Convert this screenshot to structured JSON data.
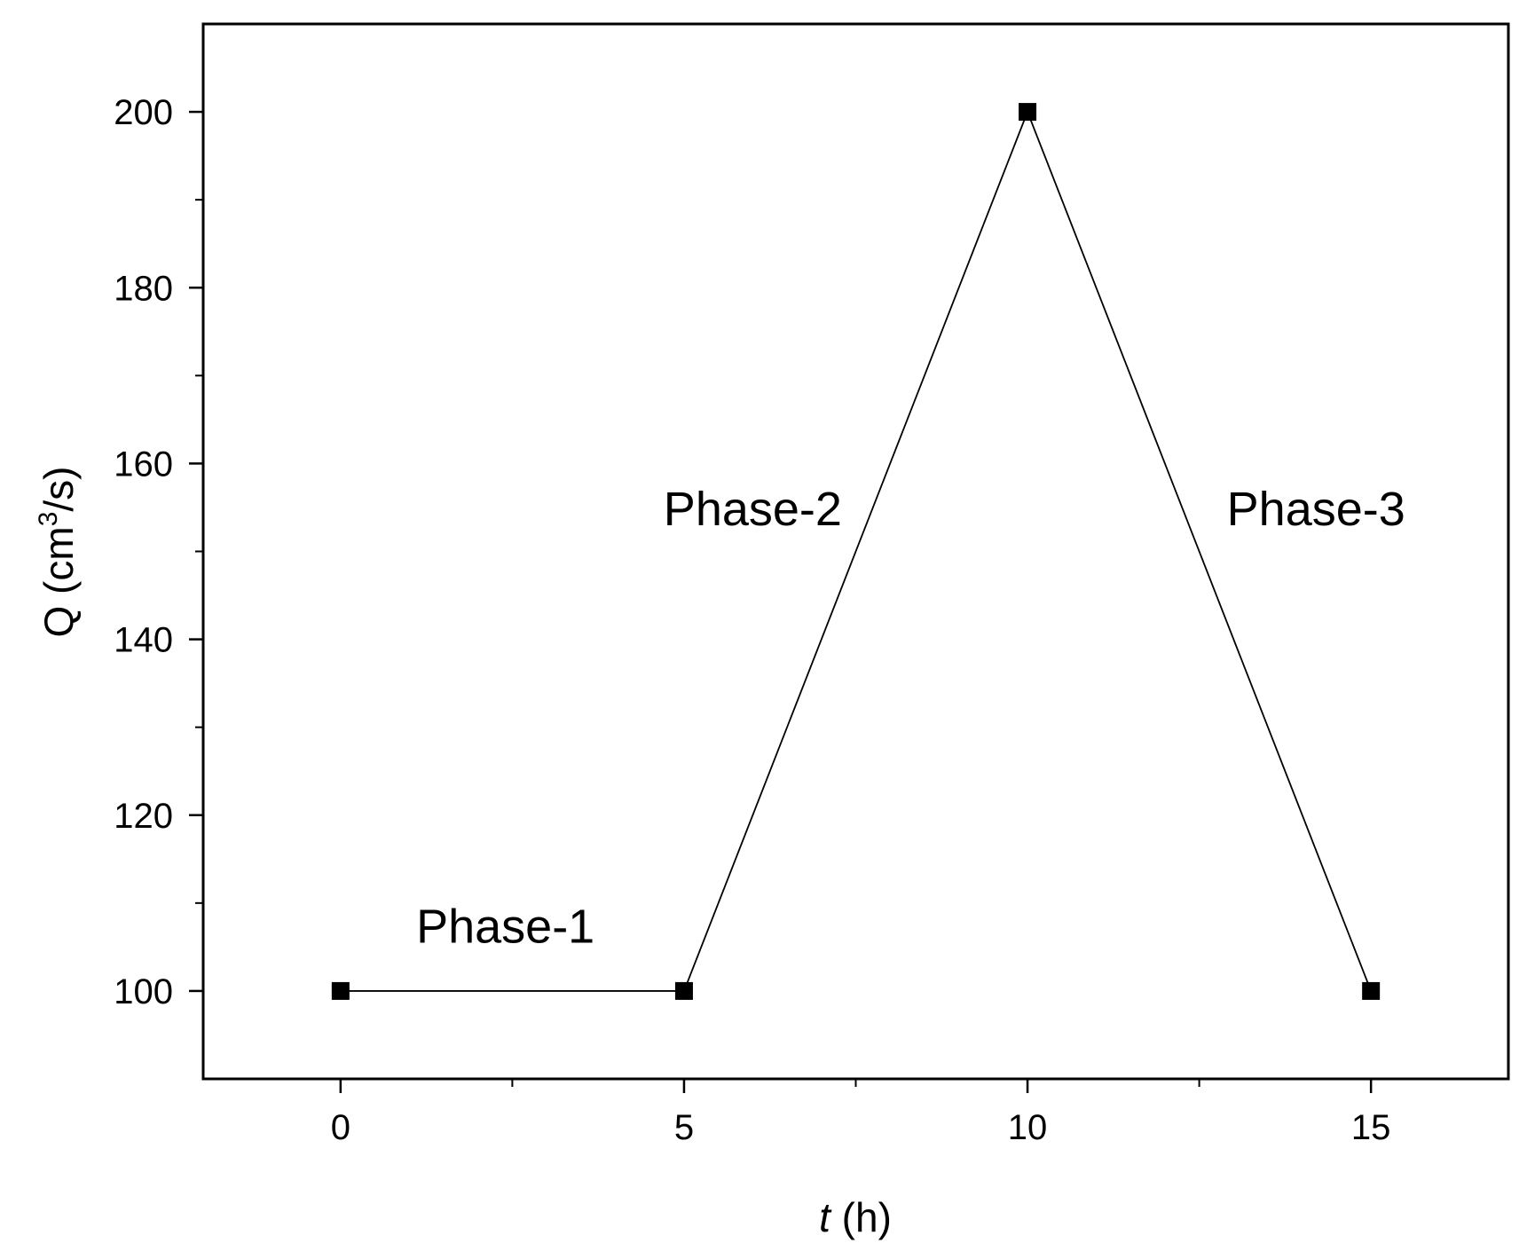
{
  "chart_data": {
    "type": "line",
    "series": [
      {
        "x": [
          0,
          5,
          10,
          15
        ],
        "y": [
          100,
          100,
          200,
          100
        ],
        "marker": "square"
      }
    ],
    "xlim": [
      -2,
      17
    ],
    "ylim": [
      90,
      210
    ],
    "xticks": [
      0,
      5,
      10,
      15
    ],
    "xticks_minor": [
      2.5,
      7.5,
      12.5
    ],
    "yticks": [
      100,
      120,
      140,
      160,
      180,
      200
    ],
    "yticks_minor": [
      110,
      130,
      150,
      170,
      190
    ],
    "xlabel_var": "t",
    "xlabel_unit": " (h)",
    "ylabel_prefix": "Q (cm",
    "ylabel_sup": "3",
    "ylabel_suffix": "/s)",
    "annotations": [
      {
        "text": "Phase-1",
        "x": 2.4,
        "y": 105.5
      },
      {
        "text": "Phase-2",
        "x": 6.0,
        "y": 153
      },
      {
        "text": "Phase-3",
        "x": 14.2,
        "y": 153
      }
    ],
    "grid": false,
    "legend": "none",
    "colors": {
      "line": "#000000",
      "marker": "#000000",
      "axes": "#000000"
    }
  }
}
